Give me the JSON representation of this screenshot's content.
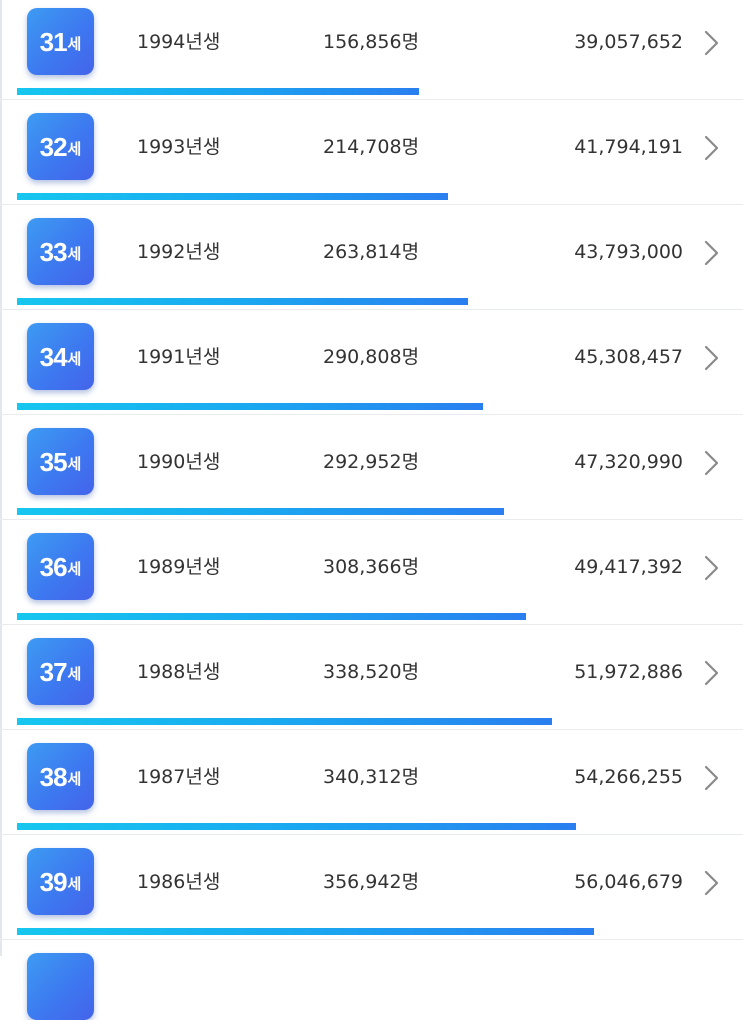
{
  "rows": [
    {
      "age_num": "31",
      "age_unit": "세",
      "birth_year": "1994년생",
      "people": "156,856명",
      "amount": "39,057,652",
      "bar_percent": 55.4
    },
    {
      "age_num": "32",
      "age_unit": "세",
      "birth_year": "1993년생",
      "people": "214,708명",
      "amount": "41,794,191",
      "bar_percent": 59.3
    },
    {
      "age_num": "33",
      "age_unit": "세",
      "birth_year": "1992년생",
      "people": "263,814명",
      "amount": "43,793,000",
      "bar_percent": 62.1
    },
    {
      "age_num": "34",
      "age_unit": "세",
      "birth_year": "1991년생",
      "people": "290,808명",
      "amount": "45,308,457",
      "bar_percent": 64.2
    },
    {
      "age_num": "35",
      "age_unit": "세",
      "birth_year": "1990년생",
      "people": "292,952명",
      "amount": "47,320,990",
      "bar_percent": 67.1
    },
    {
      "age_num": "36",
      "age_unit": "세",
      "birth_year": "1989년생",
      "people": "308,366명",
      "amount": "49,417,392",
      "bar_percent": 70.1
    },
    {
      "age_num": "37",
      "age_unit": "세",
      "birth_year": "1988년생",
      "people": "338,520명",
      "amount": "51,972,886",
      "bar_percent": 73.7
    },
    {
      "age_num": "38",
      "age_unit": "세",
      "birth_year": "1987년생",
      "people": "340,312명",
      "amount": "54,266,255",
      "bar_percent": 77.0
    },
    {
      "age_num": "39",
      "age_unit": "세",
      "birth_year": "1986년생",
      "people": "356,942명",
      "amount": "56,046,679",
      "bar_percent": 79.5
    }
  ],
  "colors": {
    "badge_gradient_start": "#3d9bf2",
    "badge_gradient_end": "#4463ea",
    "bar_gradient_start": "#16c7ef",
    "bar_gradient_end": "#2a7ff0",
    "text": "#333333",
    "chevron": "#8a8a8a"
  },
  "icons": {
    "row_arrow": "chevron-right-icon"
  }
}
